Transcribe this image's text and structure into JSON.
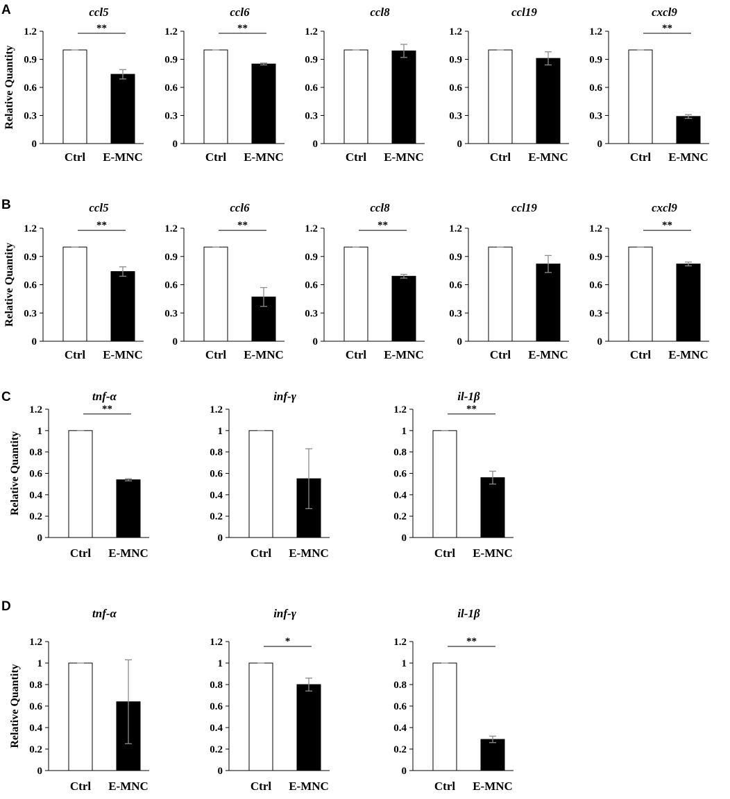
{
  "figure": {
    "y_axis_label": "Relative Quantity",
    "categories": [
      "Ctrl",
      "E-MNC"
    ],
    "colors": {
      "ctrl": "#ffffff",
      "emnc": "#000000",
      "axis": "#000000",
      "error": "#8c8c8c"
    }
  },
  "chart_data": [
    {
      "panel": "A",
      "type": "bar",
      "title": "ccl5",
      "categories": [
        "Ctrl",
        "E-MNC"
      ],
      "values": [
        1.0,
        0.74
      ],
      "errors": [
        0,
        0.05
      ],
      "significance": "**",
      "ylim": [
        0,
        1.2
      ],
      "yticks": [
        "0",
        "0.3",
        "0.6",
        "0.9",
        "1.2"
      ],
      "ylabel": "Relative Quantity"
    },
    {
      "panel": "A",
      "type": "bar",
      "title": "ccl6",
      "categories": [
        "Ctrl",
        "E-MNC"
      ],
      "values": [
        1.0,
        0.85
      ],
      "errors": [
        0,
        0.01
      ],
      "significance": "**",
      "ylim": [
        0,
        1.2
      ],
      "yticks": [
        "0",
        "0.3",
        "0.6",
        "0.9",
        "1.2"
      ]
    },
    {
      "panel": "A",
      "type": "bar",
      "title": "ccl8",
      "categories": [
        "Ctrl",
        "E-MNC"
      ],
      "values": [
        1.0,
        0.99
      ],
      "errors": [
        0,
        0.07
      ],
      "significance": "",
      "ylim": [
        0,
        1.2
      ],
      "yticks": [
        "0",
        "0.3",
        "0.6",
        "0.9",
        "1.2"
      ]
    },
    {
      "panel": "A",
      "type": "bar",
      "title": "ccl19",
      "categories": [
        "Ctrl",
        "E-MNC"
      ],
      "values": [
        1.0,
        0.91
      ],
      "errors": [
        0,
        0.07
      ],
      "significance": "",
      "ylim": [
        0,
        1.2
      ],
      "yticks": [
        "0",
        "0.3",
        "0.6",
        "0.9",
        "1.2"
      ]
    },
    {
      "panel": "A",
      "type": "bar",
      "title": "cxcl9",
      "categories": [
        "Ctrl",
        "E-MNC"
      ],
      "values": [
        1.0,
        0.29
      ],
      "errors": [
        0,
        0.02
      ],
      "significance": "**",
      "ylim": [
        0,
        1.2
      ],
      "yticks": [
        "0",
        "0.3",
        "0.6",
        "0.9",
        "1.2"
      ]
    },
    {
      "panel": "B",
      "type": "bar",
      "title": "ccl5",
      "categories": [
        "Ctrl",
        "E-MNC"
      ],
      "values": [
        1.0,
        0.74
      ],
      "errors": [
        0,
        0.05
      ],
      "significance": "**",
      "ylim": [
        0,
        1.2
      ],
      "yticks": [
        "0",
        "0.3",
        "0.6",
        "0.9",
        "1.2"
      ],
      "ylabel": "Relative Quantity"
    },
    {
      "panel": "B",
      "type": "bar",
      "title": "ccl6",
      "categories": [
        "Ctrl",
        "E-MNC"
      ],
      "values": [
        1.0,
        0.47
      ],
      "errors": [
        0,
        0.1
      ],
      "significance": "**",
      "ylim": [
        0,
        1.2
      ],
      "yticks": [
        "0",
        "0.3",
        "0.6",
        "0.9",
        "1.2"
      ]
    },
    {
      "panel": "B",
      "type": "bar",
      "title": "ccl8",
      "categories": [
        "Ctrl",
        "E-MNC"
      ],
      "values": [
        1.0,
        0.69
      ],
      "errors": [
        0,
        0.02
      ],
      "significance": "**",
      "ylim": [
        0,
        1.2
      ],
      "yticks": [
        "0",
        "0.3",
        "0.6",
        "0.9",
        "1.2"
      ]
    },
    {
      "panel": "B",
      "type": "bar",
      "title": "ccl19",
      "categories": [
        "Ctrl",
        "E-MNC"
      ],
      "values": [
        1.0,
        0.82
      ],
      "errors": [
        0,
        0.09
      ],
      "significance": "",
      "ylim": [
        0,
        1.2
      ],
      "yticks": [
        "0",
        "0.3",
        "0.6",
        "0.9",
        "1.2"
      ]
    },
    {
      "panel": "B",
      "type": "bar",
      "title": "cxcl9",
      "categories": [
        "Ctrl",
        "E-MNC"
      ],
      "values": [
        1.0,
        0.82
      ],
      "errors": [
        0,
        0.02
      ],
      "significance": "**",
      "ylim": [
        0,
        1.2
      ],
      "yticks": [
        "0",
        "0.3",
        "0.6",
        "0.9",
        "1.2"
      ]
    },
    {
      "panel": "C",
      "type": "bar",
      "title": "tnf-α",
      "categories": [
        "Ctrl",
        "E-MNC"
      ],
      "values": [
        1.0,
        0.54
      ],
      "errors": [
        0,
        0.01
      ],
      "significance": "**",
      "ylim": [
        0,
        1.2
      ],
      "yticks": [
        "0",
        "0.2",
        "0.4",
        "0.6",
        "0.8",
        "1",
        "1.2"
      ],
      "ylabel": "Relative Quantity"
    },
    {
      "panel": "C",
      "type": "bar",
      "title": "inf-γ",
      "categories": [
        "Ctrl",
        "E-MNC"
      ],
      "values": [
        1.0,
        0.55
      ],
      "errors": [
        0,
        0.28
      ],
      "significance": "",
      "ylim": [
        0,
        1.2
      ],
      "yticks": [
        "0",
        "0.2",
        "0.4",
        "0.6",
        "0.8",
        "1",
        "1.2"
      ]
    },
    {
      "panel": "C",
      "type": "bar",
      "title": "il-1β",
      "categories": [
        "Ctrl",
        "E-MNC"
      ],
      "values": [
        1.0,
        0.56
      ],
      "errors": [
        0,
        0.06
      ],
      "significance": "**",
      "ylim": [
        0,
        1.2
      ],
      "yticks": [
        "0",
        "0.2",
        "0.4",
        "0.6",
        "0.8",
        "1",
        "1.2"
      ]
    },
    {
      "panel": "D",
      "type": "bar",
      "title": "tnf-α",
      "categories": [
        "Ctrl",
        "E-MNC"
      ],
      "values": [
        1.0,
        0.64
      ],
      "errors": [
        0,
        0.39
      ],
      "significance": "",
      "ylim": [
        0,
        1.2
      ],
      "yticks": [
        "0",
        "0.2",
        "0.4",
        "0.6",
        "0.8",
        "1",
        "1.2"
      ],
      "ylabel": "Relative Quantity"
    },
    {
      "panel": "D",
      "type": "bar",
      "title": "inf-γ",
      "categories": [
        "Ctrl",
        "E-MNC"
      ],
      "values": [
        1.0,
        0.8
      ],
      "errors": [
        0,
        0.06
      ],
      "significance": "*",
      "ylim": [
        0,
        1.2
      ],
      "yticks": [
        "0",
        "0.2",
        "0.4",
        "0.6",
        "0.8",
        "1",
        "1.2"
      ]
    },
    {
      "panel": "D",
      "type": "bar",
      "title": "il-1β",
      "categories": [
        "Ctrl",
        "E-MNC"
      ],
      "values": [
        1.0,
        0.29
      ],
      "errors": [
        0,
        0.03
      ],
      "significance": "**",
      "ylim": [
        0,
        1.2
      ],
      "yticks": [
        "0",
        "0.2",
        "0.4",
        "0.6",
        "0.8",
        "1",
        "1.2"
      ]
    }
  ],
  "panel_letters": [
    "A",
    "B",
    "C",
    "D"
  ]
}
